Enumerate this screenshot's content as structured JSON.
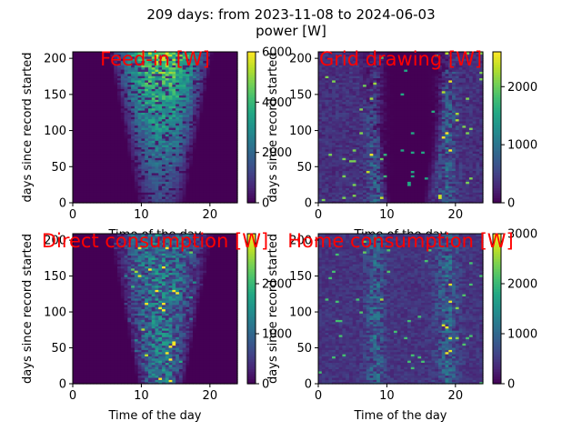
{
  "figure": {
    "title_line1": "209 days: from 2023-11-08 to 2024-06-03",
    "title_line2": "power [W]"
  },
  "colormap": "viridis",
  "chart_data": [
    {
      "type": "heatmap",
      "title": "Feed-in [W]",
      "title_color": "#ff0000",
      "xlabel": "Time of the day",
      "ylabel": "days since record started",
      "xlim": [
        0,
        24
      ],
      "ylim": [
        0,
        209
      ],
      "xticks": [
        0,
        10,
        20
      ],
      "yticks": [
        0,
        50,
        100,
        150,
        200
      ],
      "colorbar": {
        "vmin": 0,
        "vmax": 6000,
        "ticks": [
          0,
          2000,
          4000,
          6000
        ]
      },
      "pattern": "feedin"
    },
    {
      "type": "heatmap",
      "title": "Grid drawing [W]",
      "title_color": "#ff0000",
      "xlabel": "Time of the day",
      "ylabel": "days since record started",
      "xlim": [
        0,
        24
      ],
      "ylim": [
        0,
        209
      ],
      "xticks": [
        0,
        10,
        20
      ],
      "yticks": [
        0,
        50,
        100,
        150,
        200
      ],
      "colorbar": {
        "vmin": 0,
        "vmax": 2600,
        "ticks": [
          0,
          1000,
          2000
        ]
      },
      "pattern": "grid"
    },
    {
      "type": "heatmap",
      "title": "Direct consumption [W]",
      "title_color": "#ff0000",
      "xlabel": "Time of the day",
      "ylabel": "days since record started",
      "xlim": [
        0,
        24
      ],
      "ylim": [
        0,
        209
      ],
      "xticks": [
        0,
        10,
        20
      ],
      "yticks": [
        0,
        50,
        100,
        150,
        200
      ],
      "colorbar": {
        "vmin": 0,
        "vmax": 3000,
        "ticks": [
          0,
          1000,
          2000
        ]
      },
      "pattern": "direct"
    },
    {
      "type": "heatmap",
      "title": "Home consumption [W]",
      "title_color": "#ff0000",
      "xlabel": "Time of the day",
      "ylabel": "days since record started",
      "xlim": [
        0,
        24
      ],
      "ylim": [
        0,
        209
      ],
      "xticks": [
        0,
        10,
        20
      ],
      "yticks": [
        0,
        50,
        100,
        150,
        200
      ],
      "colorbar": {
        "vmin": 0,
        "vmax": 3000,
        "ticks": [
          0,
          1000,
          2000,
          3000
        ]
      },
      "pattern": "home"
    }
  ]
}
